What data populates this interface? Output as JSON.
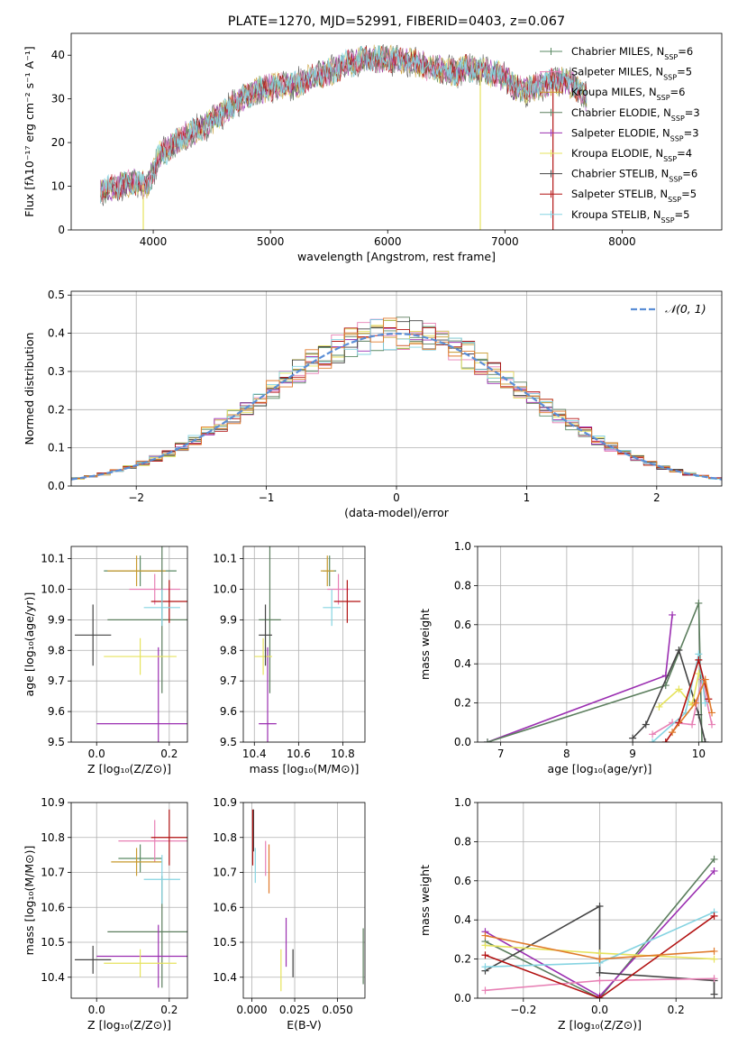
{
  "colors": {
    "cm": "#5a8a63",
    "sm": "#e77fb4",
    "km": "#c79a2e",
    "ce": "#5c7e5e",
    "se": "#9b2fb1",
    "ke": "#e6e35d",
    "cs": "#444444",
    "ss": "#b21111",
    "ks": "#86d4e2",
    "orange": "#e07a2b",
    "norm": "#5b8ed6"
  },
  "chart_data": [
    {
      "type": "line",
      "title": "PLATE=1270, MJD=52991, FIBERID=0403, z=0.067",
      "xlabel": "wavelength [Angstrom, rest frame]",
      "ylabel": "Flux [fλ10⁻¹⁷ erg cm⁻² s⁻¹ A⁻¹]",
      "xlim": [
        3300,
        8850
      ],
      "ylim": [
        0,
        45
      ],
      "xticks": [
        "4000",
        "5000",
        "6000",
        "7000",
        "8000"
      ],
      "yticks": [
        "0",
        "10",
        "20",
        "30",
        "40"
      ],
      "legend_placement": "upper-right",
      "legend": [
        {
          "key": "cm",
          "label": "Chabrier MILES, N",
          "sub": "SSP",
          "val": "=6"
        },
        {
          "key": "sm",
          "label": "Salpeter MILES, N",
          "sub": "SSP",
          "val": "=5"
        },
        {
          "key": "km",
          "label": "Kroupa MILES, N",
          "sub": "SSP",
          "val": "=6"
        },
        {
          "key": "ce",
          "label": "Chabrier ELODIE, N",
          "sub": "SSP",
          "val": "=3"
        },
        {
          "key": "se",
          "label": "Salpeter ELODIE, N",
          "sub": "SSP",
          "val": "=3"
        },
        {
          "key": "ke",
          "label": "Kroupa ELODIE, N",
          "sub": "SSP",
          "val": "=4"
        },
        {
          "key": "cs",
          "label": "Chabrier STELIB, N",
          "sub": "SSP",
          "val": "=6"
        },
        {
          "key": "ss",
          "label": "Salpeter STELIB, N",
          "sub": "SSP",
          "val": "=5"
        },
        {
          "key": "ks",
          "label": "Kroupa STELIB, N",
          "sub": "SSP",
          "val": "=5"
        }
      ],
      "spectrum_envelope": {
        "x": [
          3550,
          3700,
          3850,
          3950,
          4050,
          4150,
          4300,
          4450,
          4600,
          4750,
          4900,
          5050,
          5200,
          5350,
          5500,
          5650,
          5800,
          5950,
          6100,
          6250,
          6400,
          6550,
          6700,
          6850,
          7000,
          7100,
          7200,
          7300,
          7400,
          7500,
          7600,
          7700
        ],
        "y": [
          9,
          10,
          11,
          10,
          17,
          19,
          22,
          24,
          27,
          30,
          32,
          33,
          33,
          35,
          36,
          38,
          39,
          39,
          39,
          38,
          37,
          36,
          37,
          36,
          35,
          32,
          32,
          33,
          34,
          34,
          33,
          30
        ]
      },
      "spikes": [
        {
          "x": 3915,
          "y": 0,
          "key": "ke"
        },
        {
          "x": 6790,
          "y": 0,
          "key": "ke"
        },
        {
          "x": 7410,
          "y": 0,
          "key": "ss"
        }
      ]
    },
    {
      "type": "line",
      "xlabel": "(data-model)/error",
      "ylabel": "Normed distribution",
      "xlim": [
        -2.5,
        2.5
      ],
      "ylim": [
        0,
        0.51
      ],
      "xticks": [
        "−2",
        "−1",
        "0",
        "1",
        "2"
      ],
      "yticks": [
        "0.0",
        "0.1",
        "0.2",
        "0.3",
        "0.4",
        "0.5"
      ],
      "legend": "𝒩(0, 1)",
      "legend_placement": "upper-right",
      "bin_width": 0.1
    },
    {
      "type": "scatter",
      "xlabel": "Z [log₁₀(Z/Z⊙)]",
      "ylabel": "age  [log₁₀(age/yr)]",
      "xlim": [
        -0.07,
        0.25
      ],
      "ylim": [
        9.5,
        10.14
      ],
      "xticks": [
        "0.0",
        "0.2"
      ],
      "yticks": [
        "9.5",
        "9.6",
        "9.7",
        "9.8",
        "9.9",
        "10.0",
        "10.1"
      ],
      "points": [
        {
          "key": "cm",
          "x": 0.12,
          "y": 10.06,
          "ex": 0.1,
          "ey": 0.05
        },
        {
          "key": "sm",
          "x": 0.16,
          "y": 10.0,
          "ex": 0.07,
          "ey": 0.05
        },
        {
          "key": "km",
          "x": 0.11,
          "y": 10.06,
          "ex": 0.08,
          "ey": 0.05
        },
        {
          "key": "ce",
          "x": 0.18,
          "y": 9.9,
          "ex": 0.15,
          "ey": 0.24
        },
        {
          "key": "se",
          "x": 0.17,
          "y": 9.56,
          "ex": 0.17,
          "ey": 0.25
        },
        {
          "key": "ke",
          "x": 0.12,
          "y": 9.78,
          "ex": 0.1,
          "ey": 0.06
        },
        {
          "key": "cs",
          "x": -0.01,
          "y": 9.85,
          "ex": 0.05,
          "ey": 0.1
        },
        {
          "key": "ss",
          "x": 0.2,
          "y": 9.96,
          "ex": 0.05,
          "ey": 0.07
        },
        {
          "key": "ks",
          "x": 0.18,
          "y": 9.94,
          "ex": 0.05,
          "ey": 0.06
        }
      ]
    },
    {
      "type": "scatter",
      "xlabel": "mass [log₁₀(M/M⊙)]",
      "xlim": [
        10.35,
        10.9
      ],
      "ylim": [
        9.5,
        10.14
      ],
      "xticks": [
        "10.4",
        "10.6",
        "10.8"
      ],
      "yticks": [
        "9.5",
        "9.6",
        "9.7",
        "9.8",
        "9.9",
        "10.0",
        "10.1"
      ],
      "points": [
        {
          "key": "cm",
          "x": 10.74,
          "y": 10.06,
          "ex": 0.03,
          "ey": 0.05
        },
        {
          "key": "sm",
          "x": 10.78,
          "y": 10.0,
          "ex": 0.05,
          "ey": 0.05
        },
        {
          "key": "km",
          "x": 10.73,
          "y": 10.06,
          "ex": 0.03,
          "ey": 0.05
        },
        {
          "key": "ce",
          "x": 10.47,
          "y": 9.9,
          "ex": 0.05,
          "ey": 0.24
        },
        {
          "key": "se",
          "x": 10.46,
          "y": 9.56,
          "ex": 0.04,
          "ey": 0.25
        },
        {
          "key": "ke",
          "x": 10.44,
          "y": 9.78,
          "ex": 0.04,
          "ey": 0.06
        },
        {
          "key": "cs",
          "x": 10.45,
          "y": 9.85,
          "ex": 0.03,
          "ey": 0.1
        },
        {
          "key": "ss",
          "x": 10.82,
          "y": 9.96,
          "ex": 0.06,
          "ey": 0.07
        },
        {
          "key": "ks",
          "x": 10.75,
          "y": 9.94,
          "ex": 0.04,
          "ey": 0.06
        }
      ]
    },
    {
      "type": "line",
      "xlabel": "age  [log₁₀(age/yr)]",
      "ylabel": "mass weight",
      "xlim": [
        6.65,
        10.35
      ],
      "ylim": [
        0,
        1.0
      ],
      "xticks": [
        "7",
        "8",
        "9",
        "10"
      ],
      "yticks": [
        "0.0",
        "0.2",
        "0.4",
        "0.6",
        "0.8",
        "1.0"
      ],
      "series": [
        {
          "key": "se",
          "x": [
            6.8,
            9.5,
            9.6
          ],
          "y": [
            0.0,
            0.34,
            0.65
          ]
        },
        {
          "key": "ce",
          "x": [
            6.8,
            9.5,
            10.0,
            10.05
          ],
          "y": [
            0.0,
            0.29,
            0.71,
            0.0
          ]
        },
        {
          "key": "cs",
          "x": [
            9.0,
            9.2,
            9.7,
            10.0,
            10.1
          ],
          "y": [
            0.02,
            0.09,
            0.47,
            0.14,
            0.0
          ]
        },
        {
          "key": "ke",
          "x": [
            9.4,
            9.7,
            9.9,
            10.0
          ],
          "y": [
            0.18,
            0.27,
            0.19,
            0.35
          ]
        },
        {
          "key": "sm",
          "x": [
            9.3,
            9.6,
            9.9,
            10.05,
            10.2
          ],
          "y": [
            0.04,
            0.1,
            0.09,
            0.32,
            0.09
          ]
        },
        {
          "key": "ks",
          "x": [
            9.3,
            9.8,
            10.0,
            10.1
          ],
          "y": [
            0.0,
            0.15,
            0.45,
            0.2
          ]
        },
        {
          "key": "ss",
          "x": [
            9.5,
            9.7,
            10.0,
            10.15
          ],
          "y": [
            0.0,
            0.1,
            0.42,
            0.22
          ]
        },
        {
          "key": "orange",
          "x": [
            9.6,
            9.95,
            10.1,
            10.2
          ],
          "y": [
            0.05,
            0.2,
            0.32,
            0.15
          ]
        }
      ]
    },
    {
      "type": "scatter",
      "xlabel": "Z [log₁₀(Z/Z⊙)]",
      "ylabel": "mass [log₁₀(M/M⊙)]",
      "xlim": [
        -0.07,
        0.25
      ],
      "ylim": [
        10.34,
        10.9
      ],
      "xticks": [
        "0.0",
        "0.2"
      ],
      "yticks": [
        "10.4",
        "10.5",
        "10.6",
        "10.7",
        "10.8",
        "10.9"
      ],
      "points": [
        {
          "key": "cm",
          "x": 0.12,
          "y": 10.74,
          "ex": 0.06,
          "ey": 0.04
        },
        {
          "key": "sm",
          "x": 0.16,
          "y": 10.79,
          "ex": 0.1,
          "ey": 0.06
        },
        {
          "key": "km",
          "x": 0.11,
          "y": 10.73,
          "ex": 0.07,
          "ey": 0.04
        },
        {
          "key": "ce",
          "x": 0.18,
          "y": 10.53,
          "ex": 0.15,
          "ey": 0.16
        },
        {
          "key": "se",
          "x": 0.17,
          "y": 10.46,
          "ex": 0.17,
          "ey": 0.09
        },
        {
          "key": "ke",
          "x": 0.12,
          "y": 10.44,
          "ex": 0.1,
          "ey": 0.04
        },
        {
          "key": "cs",
          "x": -0.01,
          "y": 10.45,
          "ex": 0.05,
          "ey": 0.04
        },
        {
          "key": "ss",
          "x": 0.2,
          "y": 10.8,
          "ex": 0.05,
          "ey": 0.08
        },
        {
          "key": "ks",
          "x": 0.18,
          "y": 10.68,
          "ex": 0.05,
          "ey": 0.07
        }
      ]
    },
    {
      "type": "scatter",
      "xlabel": "E(B-V)",
      "xlim": [
        -0.005,
        0.066
      ],
      "ylim": [
        10.34,
        10.9
      ],
      "xticks": [
        "0.000",
        "0.025",
        "0.050"
      ],
      "yticks": [
        "10.4",
        "10.5",
        "10.6",
        "10.7",
        "10.8",
        "10.9"
      ],
      "points": [
        {
          "key": "cs",
          "x": 0.001,
          "y": 10.82,
          "ey": 0.06
        },
        {
          "key": "ss",
          "x": 0.0005,
          "y": 10.8,
          "ey": 0.08
        },
        {
          "key": "ks",
          "x": 0.002,
          "y": 10.72,
          "ey": 0.05
        },
        {
          "key": "sm",
          "x": 0.008,
          "y": 10.74,
          "ey": 0.05
        },
        {
          "key": "orange",
          "x": 0.01,
          "y": 10.71,
          "ey": 0.07
        },
        {
          "key": "ke",
          "x": 0.017,
          "y": 10.42,
          "ey": 0.06
        },
        {
          "key": "se",
          "x": 0.02,
          "y": 10.5,
          "ey": 0.07
        },
        {
          "key": "cs",
          "x": 0.024,
          "y": 10.44,
          "ey": 0.04
        },
        {
          "key": "ce",
          "x": 0.065,
          "y": 10.46,
          "ey": 0.08
        }
      ]
    },
    {
      "type": "line",
      "xlabel": "Z [log₁₀(Z/Z⊙)]",
      "ylabel": "mass weight",
      "xlim": [
        -0.32,
        0.32
      ],
      "ylim": [
        0,
        1.0
      ],
      "xticks": [
        "−0.2",
        "0.0",
        "0.2"
      ],
      "yticks": [
        "0.0",
        "0.2",
        "0.4",
        "0.6",
        "0.8",
        "1.0"
      ],
      "series": [
        {
          "key": "ce",
          "x": [
            -0.3,
            0.0,
            0.3
          ],
          "y": [
            0.29,
            0.0,
            0.71
          ]
        },
        {
          "key": "se",
          "x": [
            -0.3,
            0.0,
            0.3
          ],
          "y": [
            0.34,
            0.01,
            0.65
          ]
        },
        {
          "key": "cs",
          "x": [
            -0.3,
            0.0,
            0.0,
            0.3,
            0.3
          ],
          "y": [
            0.14,
            0.47,
            0.13,
            0.09,
            0.02
          ]
        },
        {
          "key": "ke",
          "x": [
            -0.3,
            0.0,
            0.3
          ],
          "y": [
            0.27,
            0.23,
            0.2
          ]
        },
        {
          "key": "sm",
          "x": [
            -0.3,
            0.0,
            0.3
          ],
          "y": [
            0.04,
            0.09,
            0.1
          ]
        },
        {
          "key": "ks",
          "x": [
            -0.3,
            0.0,
            0.3
          ],
          "y": [
            0.16,
            0.18,
            0.44
          ]
        },
        {
          "key": "ss",
          "x": [
            -0.3,
            0.0,
            0.3
          ],
          "y": [
            0.22,
            0.0,
            0.42
          ]
        },
        {
          "key": "orange",
          "x": [
            -0.3,
            0.0,
            0.3
          ],
          "y": [
            0.32,
            0.2,
            0.24
          ]
        }
      ]
    }
  ]
}
